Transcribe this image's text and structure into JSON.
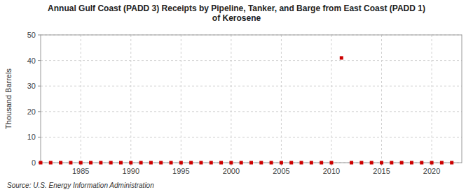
{
  "chart_data": {
    "type": "scatter",
    "title": "Annual Gulf Coast (PADD 3) Receipts by Pipeline, Tanker, and Barge from East Coast (PADD 1)\nof Kerosene",
    "y_label": "Thousand Barrels",
    "source": "Source: U.S. Energy Information Administration",
    "x": [
      1981,
      1982,
      1983,
      1984,
      1985,
      1986,
      1987,
      1988,
      1989,
      1990,
      1991,
      1992,
      1993,
      1994,
      1995,
      1996,
      1997,
      1998,
      1999,
      2000,
      2001,
      2002,
      2003,
      2004,
      2005,
      2006,
      2007,
      2008,
      2009,
      2010,
      2011,
      2012,
      2013,
      2014,
      2015,
      2016,
      2017,
      2018,
      2019,
      2020,
      2021,
      2022
    ],
    "values": [
      0,
      0,
      0,
      0,
      0,
      0,
      0,
      0,
      0,
      0,
      0,
      0,
      0,
      0,
      0,
      0,
      0,
      0,
      0,
      0,
      0,
      0,
      0,
      0,
      0,
      0,
      0,
      0,
      0,
      0,
      41,
      0,
      0,
      0,
      0,
      0,
      0,
      0,
      0,
      0,
      0,
      0
    ],
    "color": "#cc0000",
    "marker": "square",
    "xlim": [
      1981,
      2023
    ],
    "ylim": [
      0,
      50
    ],
    "xticks": [
      1985,
      1990,
      1995,
      2000,
      2005,
      2010,
      2015,
      2020
    ],
    "yticks": [
      0,
      10,
      20,
      30,
      40,
      50
    ],
    "grid": true
  }
}
